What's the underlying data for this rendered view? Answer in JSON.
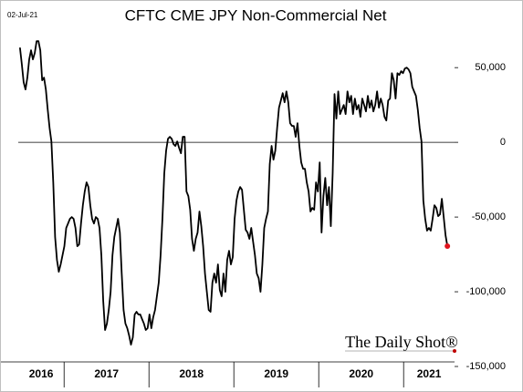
{
  "chart_data": {
    "type": "line",
    "title": "CFTC CME JPY Non-Commercial Net",
    "date": "02-Jul-21",
    "watermark": "The Daily Shot®",
    "color": "#000000",
    "last_point_color": "#e0141e",
    "reference_line": 0,
    "xlim": [
      2016.46,
      2021.6
    ],
    "xticks": [
      2016,
      2017,
      2018,
      2019,
      2020,
      2021
    ],
    "ylim": [
      -150000,
      80000
    ],
    "yticks": [
      {
        "value": 50000,
        "label": "50,000"
      },
      0,
      {
        "value": -50000,
        "label": "-50,000"
      },
      {
        "value": -100000,
        "label": "-100,000"
      },
      {
        "value": -150000,
        "label": "-150,000"
      }
    ],
    "x": [
      2016.48,
      2016.5018,
      2016.5236,
      2016.5454,
      2016.5672,
      2016.589,
      2016.6108,
      2016.6326,
      2016.6544,
      2016.6762,
      2016.698,
      2016.7198,
      2016.7416,
      2016.7634,
      2016.7852,
      2016.807,
      2016.8288,
      2016.8506,
      2016.8724,
      2016.8942,
      2016.916,
      2016.9378,
      2016.9596,
      2016.9814,
      2017.0032,
      2017.025,
      2017.0468,
      2017.0686,
      2017.0904,
      2017.1122,
      2017.134,
      2017.1558,
      2017.1776,
      2017.1994,
      2017.2212,
      2017.243,
      2017.2648,
      2017.2866,
      2017.3084,
      2017.3302,
      2017.352,
      2017.3738,
      2017.3956,
      2017.4174,
      2017.4392,
      2017.461,
      2017.4828,
      2017.5046,
      2017.5264,
      2017.5482,
      2017.57,
      2017.5918,
      2017.6136,
      2017.6354,
      2017.6572,
      2017.679,
      2017.7008,
      2017.7226,
      2017.7444,
      2017.7662,
      2017.788,
      2017.8098,
      2017.8316,
      2017.8534,
      2017.8752,
      2017.897,
      2017.9188,
      2017.9406,
      2017.9624,
      2017.9842,
      2018.006,
      2018.0278,
      2018.0496,
      2018.0714,
      2018.0932,
      2018.115,
      2018.1368,
      2018.1586,
      2018.1804,
      2018.2022,
      2018.224,
      2018.2458,
      2018.2676,
      2018.2894,
      2018.3112,
      2018.333,
      2018.3548,
      2018.3766,
      2018.3984,
      2018.4202,
      2018.442,
      2018.4638,
      2018.4856,
      2018.5074,
      2018.5292,
      2018.551,
      2018.5728,
      2018.5946,
      2018.6164,
      2018.6382,
      2018.66,
      2018.6818,
      2018.7036,
      2018.7254,
      2018.7472,
      2018.769,
      2018.7908,
      2018.8126,
      2018.8344,
      2018.8562,
      2018.878,
      2018.8998,
      2018.9216,
      2018.9434,
      2018.9652,
      2018.987,
      2019.0088,
      2019.0306,
      2019.0524,
      2019.0742,
      2019.096,
      2019.1178,
      2019.1396,
      2019.1614,
      2019.1832,
      2019.205,
      2019.2268,
      2019.2486,
      2019.2704,
      2019.2922,
      2019.314,
      2019.3358,
      2019.3576,
      2019.3794,
      2019.4012,
      2019.423,
      2019.4448,
      2019.4666,
      2019.4884,
      2019.5102,
      2019.532,
      2019.5538,
      2019.5756,
      2019.5974,
      2019.6192,
      2019.641,
      2019.6628,
      2019.6846,
      2019.7064,
      2019.7282,
      2019.75,
      2019.7718,
      2019.7936,
      2019.8154,
      2019.8372,
      2019.859,
      2019.8808,
      2019.9026,
      2019.9244,
      2019.9462,
      2019.968,
      2019.9898,
      2020.0116,
      2020.0334,
      2020.0552,
      2020.077,
      2020.0988,
      2020.1206,
      2020.1424,
      2020.1642,
      2020.186,
      2020.2078,
      2020.2296,
      2020.2514,
      2020.2732,
      2020.295,
      2020.3168,
      2020.3386,
      2020.3604,
      2020.3822,
      2020.404,
      2020.4258,
      2020.4476,
      2020.4694,
      2020.4912,
      2020.513,
      2020.5348,
      2020.5566,
      2020.5784,
      2020.6002,
      2020.622,
      2020.6438,
      2020.6656,
      2020.6874,
      2020.7092,
      2020.731,
      2020.7528,
      2020.7746,
      2020.7964,
      2020.8182,
      2020.84,
      2020.8618,
      2020.8836,
      2020.9054,
      2020.9272,
      2020.949,
      2020.9708,
      2020.9926,
      2021.0144,
      2021.0362,
      2021.058,
      2021.0798,
      2021.1016,
      2021.1234,
      2021.1452,
      2021.167,
      2021.1888,
      2021.2106,
      2021.2324,
      2021.2542,
      2021.276,
      2021.2978,
      2021.3196,
      2021.3414,
      2021.3632,
      2021.385,
      2021.4068,
      2021.4286,
      2021.4504,
      2021.4722,
      2021.494,
      2021.5158
    ],
    "values": [
      63400,
      52400,
      40200,
      35400,
      43300,
      55500,
      61600,
      55500,
      59800,
      67700,
      67700,
      61600,
      41500,
      43300,
      35400,
      22000,
      9800,
      600,
      -26800,
      -63400,
      -78700,
      -86600,
      -81700,
      -75600,
      -69500,
      -57300,
      -54300,
      -51200,
      -50000,
      -51200,
      -57300,
      -69500,
      -68300,
      -54300,
      -42100,
      -32900,
      -26800,
      -29900,
      -42100,
      -51200,
      -54300,
      -50000,
      -51200,
      -57300,
      -75600,
      -106100,
      -125600,
      -121300,
      -112200,
      -100000,
      -75600,
      -63400,
      -57300,
      -51200,
      -60400,
      -87800,
      -112200,
      -121300,
      -124400,
      -129300,
      -135400,
      -130500,
      -115200,
      -113400,
      -115200,
      -115200,
      -118300,
      -121300,
      -125600,
      -124400,
      -115200,
      -124400,
      -117100,
      -112200,
      -103000,
      -93900,
      -75600,
      -51200,
      -20700,
      -5500,
      2400,
      3700,
      2400,
      -1200,
      -2400,
      600,
      -3700,
      -7300,
      3700,
      3700,
      -32900,
      -36000,
      -45100,
      -64600,
      -72600,
      -64600,
      -60400,
      -46300,
      -56100,
      -69500,
      -87800,
      -100000,
      -112200,
      -113400,
      -93900,
      -87800,
      -93900,
      -81700,
      -98800,
      -103000,
      -87800,
      -100000,
      -78700,
      -72600,
      -81700,
      -76800,
      -51200,
      -39000,
      -32900,
      -29900,
      -31700,
      -45100,
      -58500,
      -60400,
      -64600,
      -57300,
      -66500,
      -75600,
      -87800,
      -90900,
      -100000,
      -81700,
      -57300,
      -51200,
      -46300,
      -14600,
      -2400,
      -11600,
      -5500,
      9800,
      23200,
      28000,
      32900,
      26800,
      34100,
      26800,
      12800,
      11000,
      11000,
      3700,
      12800,
      -2400,
      -13400,
      -17700,
      -17700,
      -26800,
      -32900,
      -46300,
      -43900,
      -45100,
      -26800,
      -32900,
      -13400,
      -60400,
      -36000,
      -23800,
      -42100,
      -29900,
      -56100,
      -20700,
      32300,
      15900,
      34100,
      18900,
      22000,
      25000,
      18900,
      34100,
      26800,
      31100,
      18900,
      29300,
      22000,
      25000,
      17100,
      29300,
      25000,
      20700,
      31100,
      23200,
      28000,
      20700,
      25000,
      34100,
      23200,
      29300,
      25000,
      17100,
      14600,
      28000,
      29300,
      46300,
      41500,
      29300,
      46300,
      45100,
      47600,
      46300,
      49400,
      50000,
      48800,
      46300,
      37200,
      34100,
      31100,
      22000,
      9800,
      600,
      -39000,
      -51200,
      -59100,
      -57300,
      -59100,
      -51200,
      -42100,
      -43900,
      -49400,
      -48200,
      -37800,
      -50000,
      -62200,
      -69500
    ]
  }
}
